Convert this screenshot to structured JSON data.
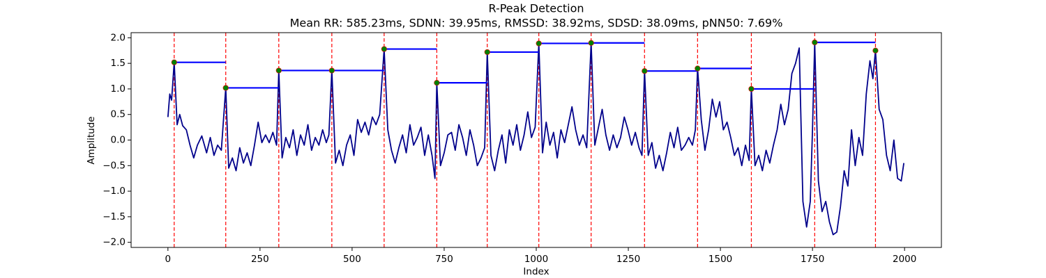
{
  "chart_data": {
    "type": "line",
    "title": "R-Peak Detection",
    "subtitle": "Mean RR: 585.23ms, SDNN: 39.95ms, RMSSD: 38.92ms, SDSD: 38.09ms, pNN50: 7.69%",
    "x_label": "Index",
    "y_label": "Amplitude",
    "xlim": [
      -100,
      2100
    ],
    "ylim": [
      -2.1,
      2.1
    ],
    "xticks": [
      0,
      250,
      500,
      750,
      1000,
      1250,
      1500,
      1750,
      2000
    ],
    "yticks": [
      {
        "value": -2.0,
        "label": "−2.0"
      },
      {
        "value": -1.5,
        "label": "−1.5"
      },
      {
        "value": -1.0,
        "label": "−1.0"
      },
      {
        "value": -0.5,
        "label": "−0.5"
      },
      {
        "value": 0.0,
        "label": "0.0"
      },
      {
        "value": 0.5,
        "label": "0.5"
      },
      {
        "value": 1.0,
        "label": "1.0"
      },
      {
        "value": 1.5,
        "label": "1.5"
      },
      {
        "value": 2.0,
        "label": "2.0"
      }
    ],
    "signal": {
      "color": "#00008b",
      "x": [
        0,
        5,
        10,
        17,
        25,
        32,
        40,
        50,
        60,
        70,
        80,
        92,
        105,
        115,
        125,
        135,
        145,
        157,
        165,
        175,
        185,
        195,
        205,
        215,
        225,
        235,
        245,
        255,
        265,
        275,
        285,
        295,
        301,
        310,
        320,
        330,
        340,
        350,
        360,
        370,
        380,
        390,
        400,
        410,
        420,
        430,
        437,
        445,
        455,
        465,
        475,
        485,
        495,
        505,
        515,
        525,
        535,
        545,
        555,
        565,
        575,
        587,
        597,
        607,
        617,
        627,
        637,
        647,
        657,
        667,
        677,
        687,
        697,
        707,
        717,
        725,
        730,
        740,
        750,
        760,
        770,
        780,
        790,
        800,
        810,
        820,
        830,
        840,
        850,
        860,
        867,
        877,
        887,
        897,
        907,
        917,
        927,
        937,
        947,
        957,
        967,
        977,
        987,
        997,
        1007,
        1017,
        1027,
        1037,
        1047,
        1057,
        1067,
        1077,
        1087,
        1097,
        1107,
        1117,
        1127,
        1137,
        1149,
        1159,
        1169,
        1179,
        1189,
        1199,
        1209,
        1219,
        1229,
        1239,
        1249,
        1259,
        1269,
        1279,
        1287,
        1294,
        1304,
        1314,
        1324,
        1334,
        1344,
        1354,
        1364,
        1374,
        1384,
        1394,
        1404,
        1414,
        1424,
        1432,
        1438,
        1448,
        1458,
        1468,
        1478,
        1488,
        1498,
        1508,
        1518,
        1528,
        1538,
        1548,
        1558,
        1568,
        1578,
        1584,
        1594,
        1604,
        1614,
        1624,
        1634,
        1644,
        1654,
        1664,
        1674,
        1684,
        1694,
        1704,
        1714,
        1724,
        1734,
        1744,
        1750,
        1756,
        1766,
        1776,
        1786,
        1796,
        1806,
        1816,
        1826,
        1836,
        1846,
        1856,
        1866,
        1876,
        1886,
        1896,
        1906,
        1914,
        1921,
        1931,
        1941,
        1951,
        1961,
        1971,
        1981,
        1991,
        1998
      ],
      "values": [
        0.45,
        0.9,
        0.78,
        1.52,
        0.3,
        0.5,
        0.28,
        0.2,
        -0.1,
        -0.35,
        -0.1,
        0.08,
        -0.25,
        0.05,
        -0.3,
        -0.1,
        -0.2,
        1.02,
        -0.55,
        -0.35,
        -0.6,
        -0.15,
        -0.45,
        -0.25,
        -0.5,
        -0.1,
        0.35,
        -0.05,
        0.1,
        -0.05,
        0.15,
        -0.1,
        1.36,
        -0.35,
        0.05,
        -0.15,
        0.2,
        -0.3,
        0.1,
        -0.1,
        0.3,
        -0.2,
        0.05,
        -0.1,
        0.2,
        -0.05,
        0.1,
        1.36,
        -0.45,
        -0.2,
        -0.5,
        -0.1,
        0.1,
        -0.3,
        0.4,
        0.15,
        0.35,
        0.1,
        0.45,
        0.3,
        0.5,
        1.78,
        0.2,
        -0.2,
        -0.45,
        -0.15,
        0.1,
        -0.25,
        0.3,
        -0.1,
        0.05,
        0.25,
        -0.3,
        0.1,
        -0.3,
        -0.75,
        1.12,
        -0.5,
        -0.25,
        0.1,
        0.15,
        -0.2,
        0.3,
        0.05,
        -0.3,
        0.2,
        -0.1,
        -0.5,
        -0.35,
        -0.15,
        1.72,
        -0.3,
        -0.6,
        -0.2,
        0.1,
        -0.45,
        0.2,
        -0.1,
        0.3,
        -0.2,
        0.1,
        0.55,
        0.05,
        0.25,
        1.89,
        -0.25,
        0.35,
        -0.1,
        0.15,
        -0.35,
        0.2,
        -0.05,
        0.3,
        0.65,
        0.2,
        -0.1,
        0.1,
        -0.15,
        1.9,
        -0.1,
        0.25,
        0.6,
        0.1,
        -0.2,
        0.1,
        -0.15,
        0.05,
        0.45,
        0.2,
        -0.1,
        0.15,
        -0.15,
        -0.3,
        1.35,
        -0.3,
        -0.05,
        -0.55,
        -0.3,
        -0.6,
        -0.25,
        0.15,
        -0.15,
        0.25,
        -0.2,
        -0.1,
        0.05,
        -0.1,
        0.2,
        1.4,
        0.4,
        -0.2,
        0.2,
        0.8,
        0.45,
        0.75,
        0.2,
        0.35,
        0.05,
        -0.3,
        -0.15,
        -0.5,
        -0.1,
        -0.4,
        1.0,
        -0.5,
        -0.3,
        -0.6,
        -0.2,
        -0.45,
        -0.1,
        0.2,
        0.7,
        0.3,
        0.6,
        1.3,
        1.5,
        1.8,
        -1.2,
        -1.7,
        -1.2,
        0.2,
        1.91,
        -0.8,
        -1.4,
        -1.2,
        -1.6,
        -1.85,
        -1.8,
        -1.3,
        -0.6,
        -0.9,
        0.2,
        -0.5,
        0.05,
        -0.3,
        0.9,
        1.55,
        1.2,
        1.75,
        0.6,
        0.4,
        -0.3,
        -0.6,
        0.0,
        -0.75,
        -0.8,
        -0.45
      ]
    },
    "peaks": {
      "color": "#008000",
      "line_color": "#ff0000",
      "interval_color": "#0000ff",
      "x": [
        17,
        157,
        301,
        445,
        587,
        730,
        867,
        1007,
        1149,
        1294,
        1438,
        1584,
        1756,
        1921
      ],
      "values": [
        1.52,
        1.02,
        1.36,
        1.36,
        1.78,
        1.12,
        1.72,
        1.89,
        1.9,
        1.35,
        1.4,
        1.0,
        1.91,
        1.75
      ]
    }
  }
}
